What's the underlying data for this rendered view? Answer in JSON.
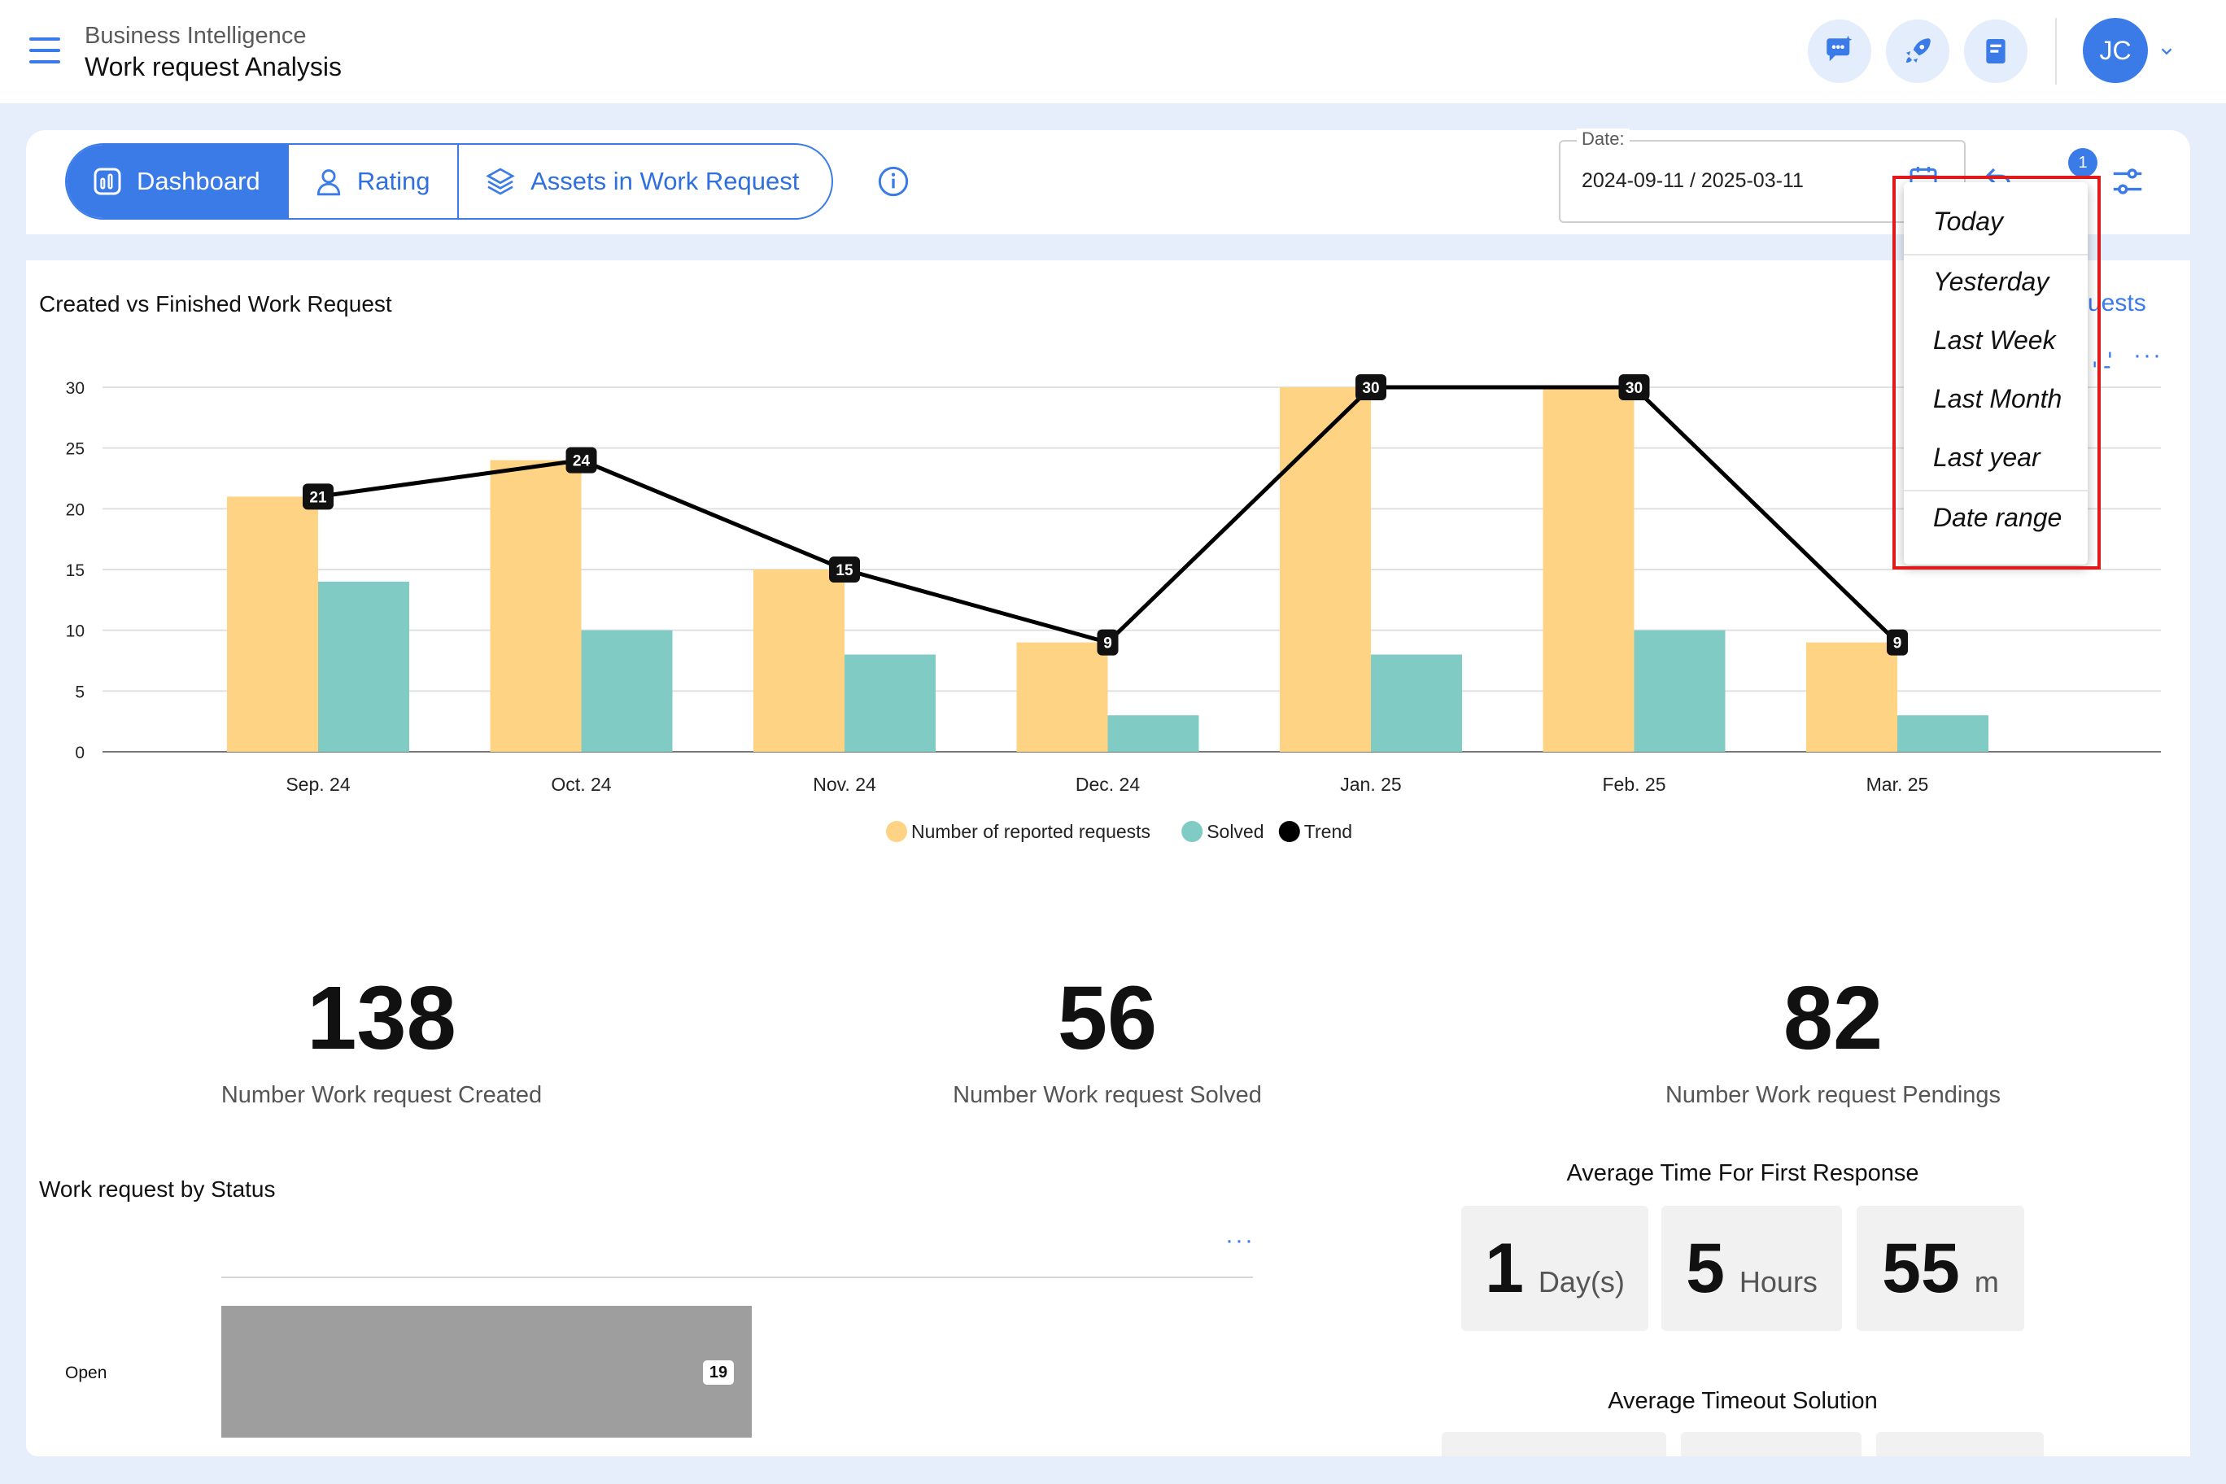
{
  "header": {
    "subtitle": "Business Intelligence",
    "title": "Work request Analysis",
    "avatar_initials": "JC",
    "icons": [
      "chat-sparkle-icon",
      "rocket-icon",
      "book-icon"
    ]
  },
  "tabs": [
    {
      "label": "Dashboard",
      "icon": "dashboard-chart-icon",
      "active": true
    },
    {
      "label": "Rating",
      "icon": "user-icon",
      "active": false
    },
    {
      "label": "Assets in Work Request",
      "icon": "layers-icon",
      "active": false
    }
  ],
  "date_filter": {
    "label": "Date:",
    "value": "2024-09-11 / 2025-03-11",
    "filter_badge": "1"
  },
  "date_menu": {
    "items": [
      "Today",
      "Yesterday",
      "Last Week",
      "Last Month",
      "Last year",
      "Date range"
    ]
  },
  "chart_card": {
    "title": "Created vs Finished Work Request",
    "link_partial": "uests",
    "more": "···"
  },
  "chart_data": {
    "type": "bar",
    "categories": [
      "Sep. 24",
      "Oct. 24",
      "Nov. 24",
      "Dec. 24",
      "Jan. 25",
      "Feb. 25",
      "Mar. 25"
    ],
    "series": [
      {
        "name": "Number of reported requests",
        "type": "bar",
        "color": "#ffd384",
        "values": [
          21,
          24,
          15,
          9,
          30,
          30,
          9
        ]
      },
      {
        "name": "Solved",
        "type": "bar",
        "color": "#80cbc4",
        "values": [
          14,
          10,
          8,
          3,
          8,
          10,
          3
        ]
      },
      {
        "name": "Trend",
        "type": "line",
        "color": "#000000",
        "values": [
          21,
          24,
          15,
          9,
          30,
          30,
          9
        ]
      }
    ],
    "yticks": [
      0,
      5,
      10,
      15,
      20,
      25,
      30
    ],
    "ylim": [
      0,
      30
    ],
    "grid": true,
    "legend": "bottom-center"
  },
  "kpis": [
    {
      "value": "138",
      "label": "Number Work request Created"
    },
    {
      "value": "56",
      "label": "Number Work request Solved"
    },
    {
      "value": "82",
      "label": "Number Work request Pendings"
    }
  ],
  "status_card": {
    "title": "Work request by Status",
    "more": "···",
    "category": "Open",
    "value": "19",
    "bar_color": "#9e9e9e"
  },
  "first_response": {
    "title": "Average Time For First Response",
    "days": "1",
    "days_unit": "Day(s)",
    "hours": "5",
    "hours_unit": "Hours",
    "minutes": "55",
    "minutes_unit": "m"
  },
  "timeout": {
    "title": "Average Timeout Solution"
  },
  "colors": {
    "accent": "#3a7be8",
    "background": "#e6eefb",
    "highlight": "#e01919"
  }
}
